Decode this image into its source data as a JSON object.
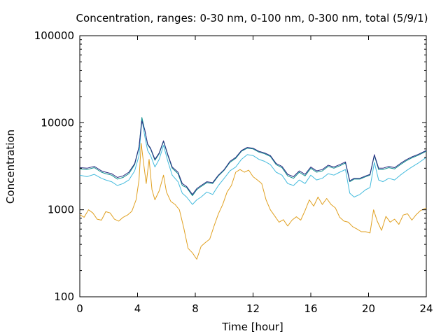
{
  "chart_data": {
    "type": "line",
    "title": "Concentration, ranges: 0-30 nm, 0-100 nm, 0-300 nm, total (5/9/1)",
    "xlabel": "Time [hour]",
    "ylabel": "Concentration",
    "xlim": [
      0,
      24
    ],
    "ylim": [
      100,
      100000
    ],
    "yscale": "log",
    "grid": false,
    "xticks": [
      0,
      4,
      8,
      12,
      16,
      20,
      24
    ],
    "xtick_labels": [
      "0",
      "4",
      "8",
      "12",
      "16",
      "20",
      "24"
    ],
    "yticks": [
      100,
      1000,
      10000,
      100000
    ],
    "ytick_labels": [
      "100",
      "1000",
      "10000",
      "100000"
    ],
    "series": [
      {
        "name": "0-30 nm",
        "color": "#e0a020",
        "x": [
          0,
          0.3,
          0.6,
          0.9,
          1.2,
          1.5,
          1.8,
          2.1,
          2.4,
          2.7,
          3.0,
          3.3,
          3.6,
          3.9,
          4.1,
          4.25,
          4.4,
          4.6,
          4.8,
          5.0,
          5.2,
          5.5,
          5.8,
          6.0,
          6.3,
          6.6,
          6.9,
          7.2,
          7.5,
          7.8,
          8.1,
          8.4,
          8.7,
          9.0,
          9.3,
          9.6,
          9.9,
          10.2,
          10.5,
          10.8,
          11.1,
          11.4,
          11.7,
          12.0,
          12.3,
          12.6,
          12.9,
          13.2,
          13.5,
          13.8,
          14.1,
          14.4,
          14.7,
          15.0,
          15.3,
          15.6,
          15.9,
          16.2,
          16.5,
          16.8,
          17.1,
          17.4,
          17.7,
          18.0,
          18.3,
          18.6,
          18.9,
          19.2,
          19.5,
          19.8,
          20.1,
          20.35,
          20.6,
          20.9,
          21.2,
          21.5,
          21.8,
          22.1,
          22.4,
          22.7,
          23.0,
          23.3,
          23.6,
          24
        ],
        "values": [
          880,
          820,
          1000,
          920,
          780,
          760,
          950,
          920,
          780,
          740,
          820,
          870,
          960,
          1300,
          2200,
          5800,
          3600,
          2000,
          3800,
          1700,
          1300,
          1650,
          2500,
          1600,
          1250,
          1150,
          1000,
          620,
          360,
          320,
          270,
          380,
          420,
          460,
          650,
          900,
          1150,
          1600,
          1900,
          2700,
          2900,
          2700,
          2850,
          2400,
          2200,
          2000,
          1300,
          1000,
          850,
          720,
          770,
          650,
          760,
          830,
          760,
          980,
          1300,
          1100,
          1400,
          1150,
          1350,
          1150,
          1050,
          820,
          740,
          720,
          640,
          600,
          560,
          560,
          540,
          1000,
          740,
          580,
          840,
          720,
          780,
          680,
          870,
          900,
          760,
          880,
          980,
          1050
        ]
      },
      {
        "name": "0-100 nm",
        "color": "#44bbdd",
        "x": [
          0,
          0.5,
          1.0,
          1.5,
          1.8,
          2.2,
          2.6,
          3.0,
          3.4,
          3.8,
          4.1,
          4.3,
          4.5,
          4.7,
          4.9,
          5.2,
          5.5,
          5.8,
          6.1,
          6.4,
          6.8,
          7.1,
          7.4,
          7.8,
          8.1,
          8.4,
          8.8,
          9.2,
          9.6,
          10.0,
          10.4,
          10.8,
          11.2,
          11.6,
          12.0,
          12.4,
          12.8,
          13.2,
          13.6,
          14.0,
          14.4,
          14.8,
          15.2,
          15.6,
          16.0,
          16.4,
          16.8,
          17.2,
          17.6,
          18.0,
          18.4,
          18.7,
          19.0,
          19.4,
          19.8,
          20.1,
          20.4,
          20.7,
          21.0,
          21.4,
          21.8,
          22.2,
          22.6,
          23.0,
          23.4,
          24
        ],
        "values": [
          2500,
          2400,
          2550,
          2300,
          2200,
          2100,
          1900,
          2000,
          2200,
          2800,
          4200,
          11000,
          7000,
          4800,
          4200,
          3100,
          3800,
          5500,
          3600,
          2500,
          2100,
          1550,
          1400,
          1150,
          1300,
          1400,
          1600,
          1500,
          1900,
          2300,
          2800,
          3100,
          3800,
          4300,
          4200,
          3800,
          3600,
          3300,
          2700,
          2500,
          2000,
          1900,
          2200,
          2000,
          2500,
          2200,
          2300,
          2600,
          2500,
          2700,
          2900,
          1550,
          1400,
          1500,
          1700,
          1800,
          3500,
          2200,
          2100,
          2300,
          2200,
          2500,
          2800,
          3100,
          3400,
          4000
        ]
      },
      {
        "name": "0-300 nm",
        "color": "#109090",
        "x": [
          0,
          0.5,
          1.0,
          1.5,
          1.8,
          2.2,
          2.6,
          3.0,
          3.4,
          3.8,
          4.1,
          4.3,
          4.5,
          4.7,
          4.9,
          5.2,
          5.5,
          5.8,
          6.1,
          6.4,
          6.8,
          7.1,
          7.4,
          7.8,
          8.1,
          8.4,
          8.8,
          9.2,
          9.6,
          10.0,
          10.4,
          10.8,
          11.2,
          11.6,
          12.0,
          12.4,
          12.8,
          13.2,
          13.6,
          14.0,
          14.4,
          14.8,
          15.2,
          15.6,
          16.0,
          16.4,
          16.8,
          17.2,
          17.6,
          18.0,
          18.4,
          18.7,
          19.0,
          19.4,
          19.8,
          20.1,
          20.4,
          20.7,
          21.0,
          21.4,
          21.8,
          22.2,
          22.6,
          23.0,
          23.4,
          24
        ],
        "values": [
          2950,
          2900,
          3050,
          2700,
          2600,
          2500,
          2250,
          2350,
          2600,
          3300,
          5200,
          11500,
          8200,
          5600,
          5000,
          3700,
          4400,
          6100,
          4200,
          3000,
          2600,
          1900,
          1800,
          1450,
          1700,
          1850,
          2050,
          2000,
          2450,
          2850,
          3500,
          3900,
          4700,
          5100,
          5000,
          4600,
          4400,
          4100,
          3300,
          3050,
          2450,
          2300,
          2700,
          2450,
          3000,
          2700,
          2800,
          3150,
          3000,
          3200,
          3450,
          2100,
          2250,
          2250,
          2400,
          2500,
          4200,
          2900,
          2900,
          3050,
          2950,
          3300,
          3650,
          3950,
          4200,
          4700
        ]
      },
      {
        "name": "total",
        "color": "#2a2a80",
        "x": [
          0,
          0.5,
          1.0,
          1.5,
          1.8,
          2.2,
          2.6,
          3.0,
          3.4,
          3.8,
          4.1,
          4.3,
          4.5,
          4.7,
          4.9,
          5.2,
          5.5,
          5.8,
          6.1,
          6.4,
          6.8,
          7.1,
          7.4,
          7.8,
          8.1,
          8.4,
          8.8,
          9.2,
          9.6,
          10.0,
          10.4,
          10.8,
          11.2,
          11.6,
          12.0,
          12.4,
          12.8,
          13.2,
          13.6,
          14.0,
          14.4,
          14.8,
          15.2,
          15.6,
          16.0,
          16.4,
          16.8,
          17.2,
          17.6,
          18.0,
          18.4,
          18.7,
          19.0,
          19.4,
          19.8,
          20.1,
          20.4,
          20.7,
          21.0,
          21.4,
          21.8,
          22.2,
          22.6,
          23.0,
          23.4,
          24
        ],
        "values": [
          3050,
          3000,
          3150,
          2800,
          2700,
          2600,
          2350,
          2450,
          2700,
          3400,
          5300,
          10500,
          8300,
          5700,
          5100,
          3800,
          4500,
          6200,
          4300,
          3100,
          2700,
          2000,
          1850,
          1500,
          1750,
          1900,
          2100,
          2050,
          2500,
          2900,
          3600,
          4000,
          4800,
          5200,
          5100,
          4700,
          4500,
          4200,
          3400,
          3150,
          2550,
          2400,
          2800,
          2550,
          3100,
          2800,
          2900,
          3250,
          3100,
          3300,
          3550,
          2150,
          2300,
          2300,
          2450,
          2550,
          4300,
          3000,
          3000,
          3150,
          3050,
          3400,
          3750,
          4050,
          4300,
          4800
        ]
      }
    ]
  }
}
